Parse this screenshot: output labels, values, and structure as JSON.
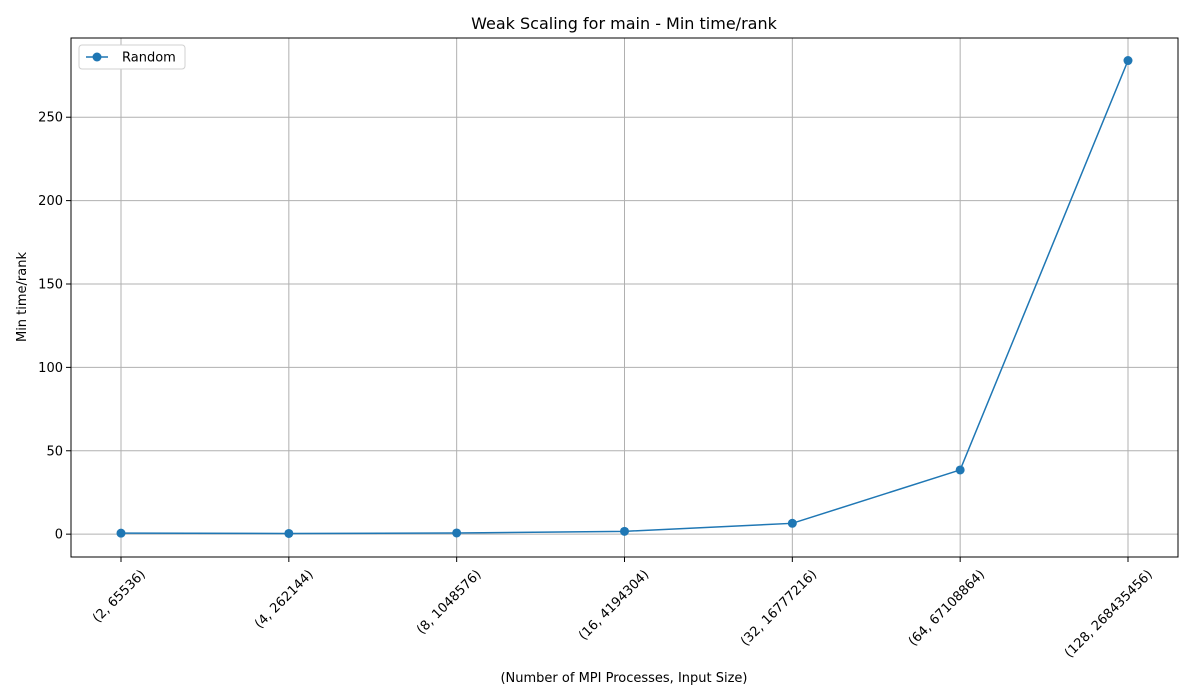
{
  "chart_data": {
    "type": "line",
    "title": "Weak Scaling for main - Min time/rank",
    "xlabel": "(Number of MPI Processes, Input Size)",
    "ylabel": "Min time/rank",
    "categories": [
      "(2, 65536)",
      "(4, 262144)",
      "(8, 1048576)",
      "(16, 4194304)",
      "(32, 16777216)",
      "(64, 67108864)",
      "(128, 268435456)"
    ],
    "series": [
      {
        "name": "Random",
        "color": "#1f77b4",
        "marker": "circle",
        "values": [
          0.6,
          0.4,
          0.7,
          1.7,
          6.5,
          38.5,
          284.0
        ]
      }
    ],
    "ylim": [
      -13.7,
      297.5
    ],
    "yticks": [
      0,
      50,
      100,
      150,
      200,
      250
    ],
    "grid": true,
    "legend_position": "top-left",
    "x_tick_rotation": "45"
  }
}
